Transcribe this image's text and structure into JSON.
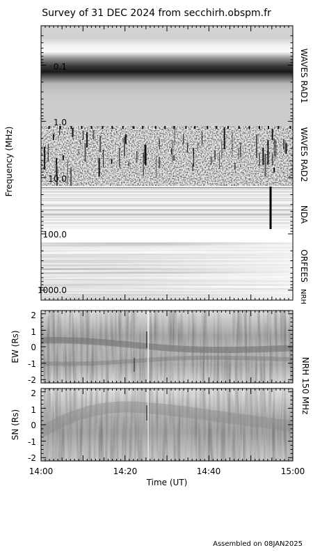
{
  "title": "Survey of 31 DEC 2024 from secchirh.obspm.fr",
  "footer": "Assembled on 08JAN2025",
  "colors": {
    "background": "#ffffff",
    "axis": "#000000"
  },
  "chart_data": [
    {
      "type": "heatmap",
      "name": "dynamic-spectrum",
      "ylabel": "Frequency (MHz)",
      "yscale": "log",
      "yinverted": true,
      "ylim": [
        0.02,
        1500
      ],
      "yticks": [
        {
          "value": 0.1,
          "label": "0.1"
        },
        {
          "value": 1,
          "label": "1.0"
        },
        {
          "value": 10,
          "label": "10.0"
        },
        {
          "value": 100,
          "label": "100.0"
        },
        {
          "value": 1000,
          "label": "1000.0"
        }
      ],
      "xlim": [
        "14:00",
        "15:00"
      ],
      "instruments": [
        {
          "label": "WAVES RAD1",
          "freq_range": [
            0.02,
            1.0
          ]
        },
        {
          "label": "WAVES RAD2",
          "freq_range": [
            1.0,
            16
          ]
        },
        {
          "label": "NDA",
          "freq_range": [
            16,
            100
          ]
        },
        {
          "label": "ORFEES",
          "freq_range": [
            140,
            1000
          ]
        },
        {
          "label": "NRH",
          "freq_range": [
            1000,
            1500
          ]
        }
      ]
    },
    {
      "type": "heatmap",
      "name": "nrh-ew",
      "ylabel": "EW (Rs)",
      "ylim": [
        -2.2,
        2.2
      ],
      "yticks": [
        "2",
        "1",
        "0",
        "-1",
        "-2"
      ]
    },
    {
      "type": "heatmap",
      "name": "nrh-sn",
      "ylabel": "SN (Rs)",
      "ylim": [
        -2.2,
        2.2
      ],
      "yticks": [
        "2",
        "1",
        "0",
        "-1",
        "-2"
      ],
      "xlabel": "Time (UT)",
      "xticks": [
        "14:00",
        "14:20",
        "14:40",
        "15:00"
      ]
    }
  ],
  "nrh_label": "NRH 150 MHz"
}
